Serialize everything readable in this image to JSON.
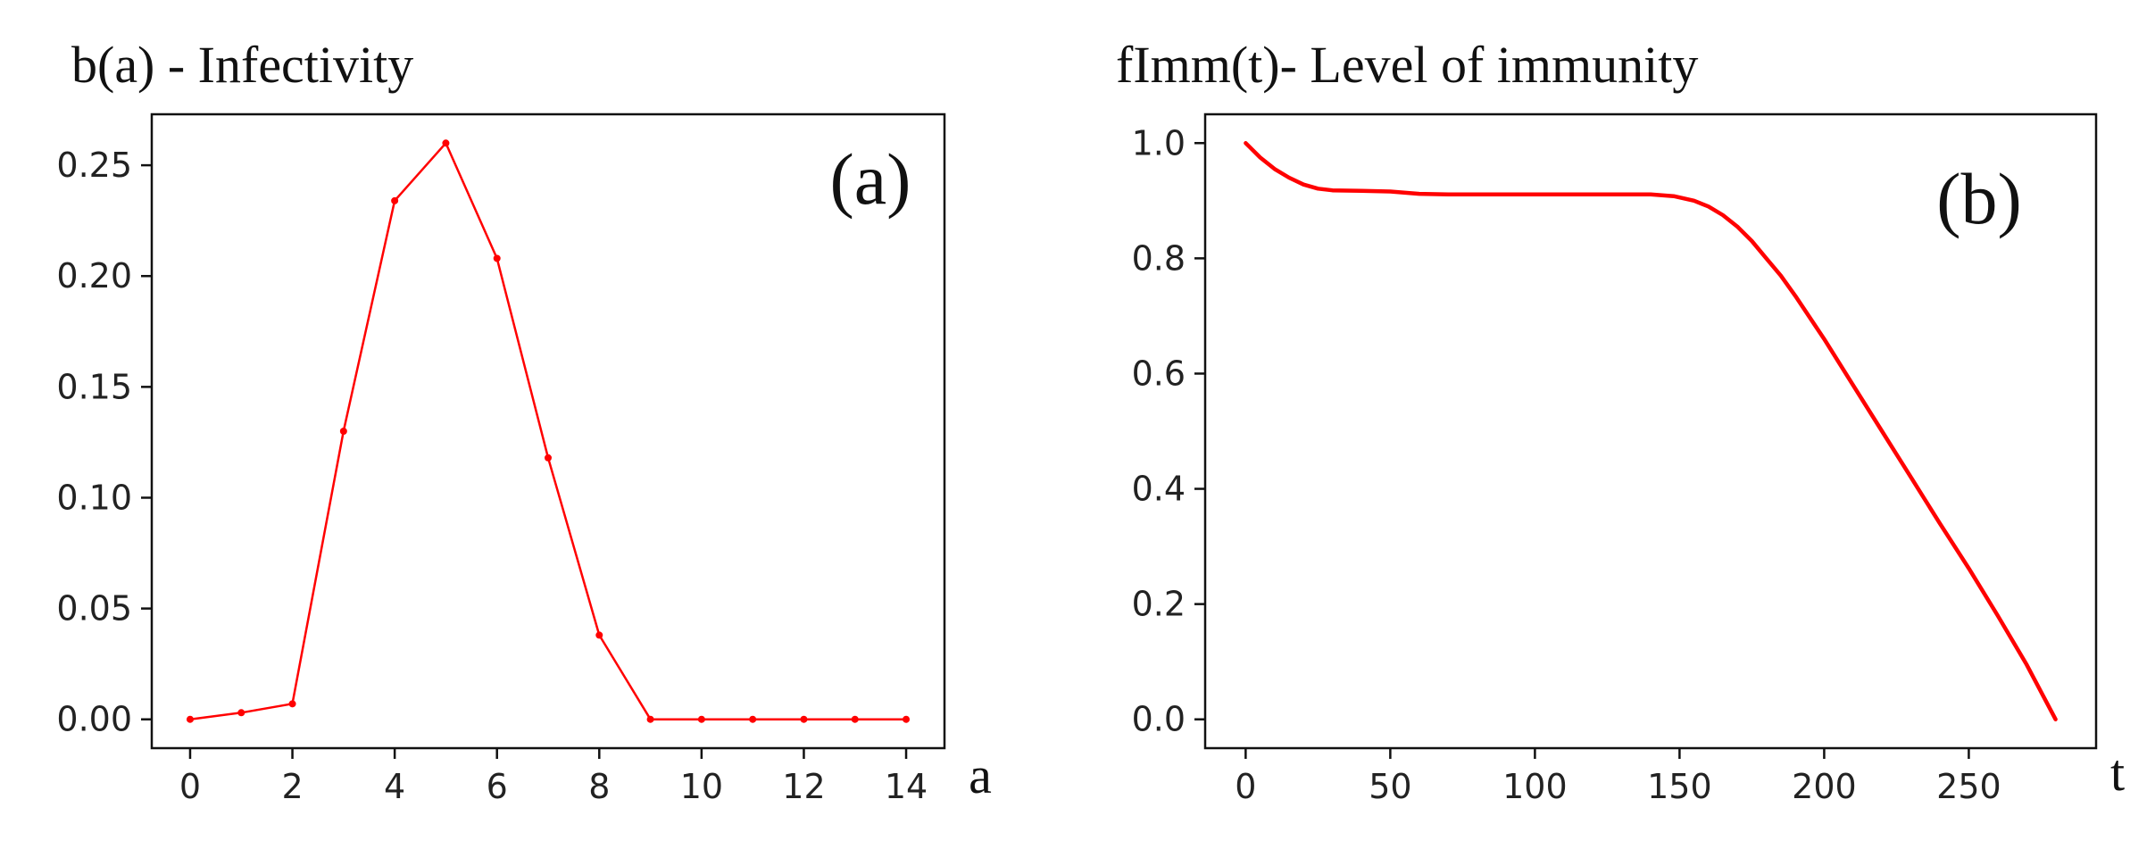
{
  "chart_data": [
    {
      "type": "line",
      "title": "b(a) - Infectivity",
      "panel_label": "(a)",
      "xlabel": "a",
      "ylabel": "",
      "xlim": [
        -0.75,
        14.75
      ],
      "ylim": [
        -0.013,
        0.273
      ],
      "x_ticks": [
        0,
        2,
        4,
        6,
        8,
        10,
        12,
        14
      ],
      "y_ticks": [
        "0.00",
        "0.05",
        "0.10",
        "0.15",
        "0.20",
        "0.25"
      ],
      "y_tick_values": [
        0,
        0.05,
        0.1,
        0.15,
        0.2,
        0.25
      ],
      "grid": false,
      "markers": true,
      "color": "#ff0000",
      "series": [
        {
          "x": [
            0,
            1,
            2,
            3,
            4,
            5,
            6,
            7,
            8,
            9,
            10,
            11,
            12,
            13,
            14
          ],
          "values": [
            0.0,
            0.003,
            0.007,
            0.13,
            0.234,
            0.26,
            0.208,
            0.118,
            0.038,
            0.0,
            0.0,
            0.0,
            0.0,
            0.0,
            0.0
          ]
        }
      ]
    },
    {
      "type": "line",
      "title": "fImm(t)- Level of immunity",
      "panel_label": "(b)",
      "xlabel": "t",
      "ylabel": "",
      "xlim": [
        -14,
        294
      ],
      "ylim": [
        -0.05,
        1.05
      ],
      "x_ticks": [
        0,
        50,
        100,
        150,
        200,
        250
      ],
      "y_ticks": [
        "0.0",
        "0.2",
        "0.4",
        "0.6",
        "0.8",
        "1.0"
      ],
      "y_tick_values": [
        0,
        0.2,
        0.4,
        0.6,
        0.8,
        1.0
      ],
      "grid": false,
      "markers": false,
      "color": "#ff0000",
      "series": [
        {
          "x": [
            0,
            5,
            10,
            15,
            20,
            25,
            30,
            40,
            50,
            60,
            70,
            80,
            100,
            120,
            140,
            148,
            155,
            160,
            165,
            170,
            175,
            180,
            185,
            190,
            200,
            210,
            220,
            230,
            240,
            250,
            260,
            270,
            280
          ],
          "values": [
            1.0,
            0.975,
            0.955,
            0.94,
            0.928,
            0.921,
            0.918,
            0.917,
            0.916,
            0.912,
            0.911,
            0.911,
            0.911,
            0.911,
            0.911,
            0.908,
            0.9,
            0.89,
            0.875,
            0.855,
            0.83,
            0.8,
            0.77,
            0.735,
            0.66,
            0.58,
            0.5,
            0.42,
            0.34,
            0.262,
            0.18,
            0.095,
            0.0
          ]
        }
      ]
    }
  ]
}
